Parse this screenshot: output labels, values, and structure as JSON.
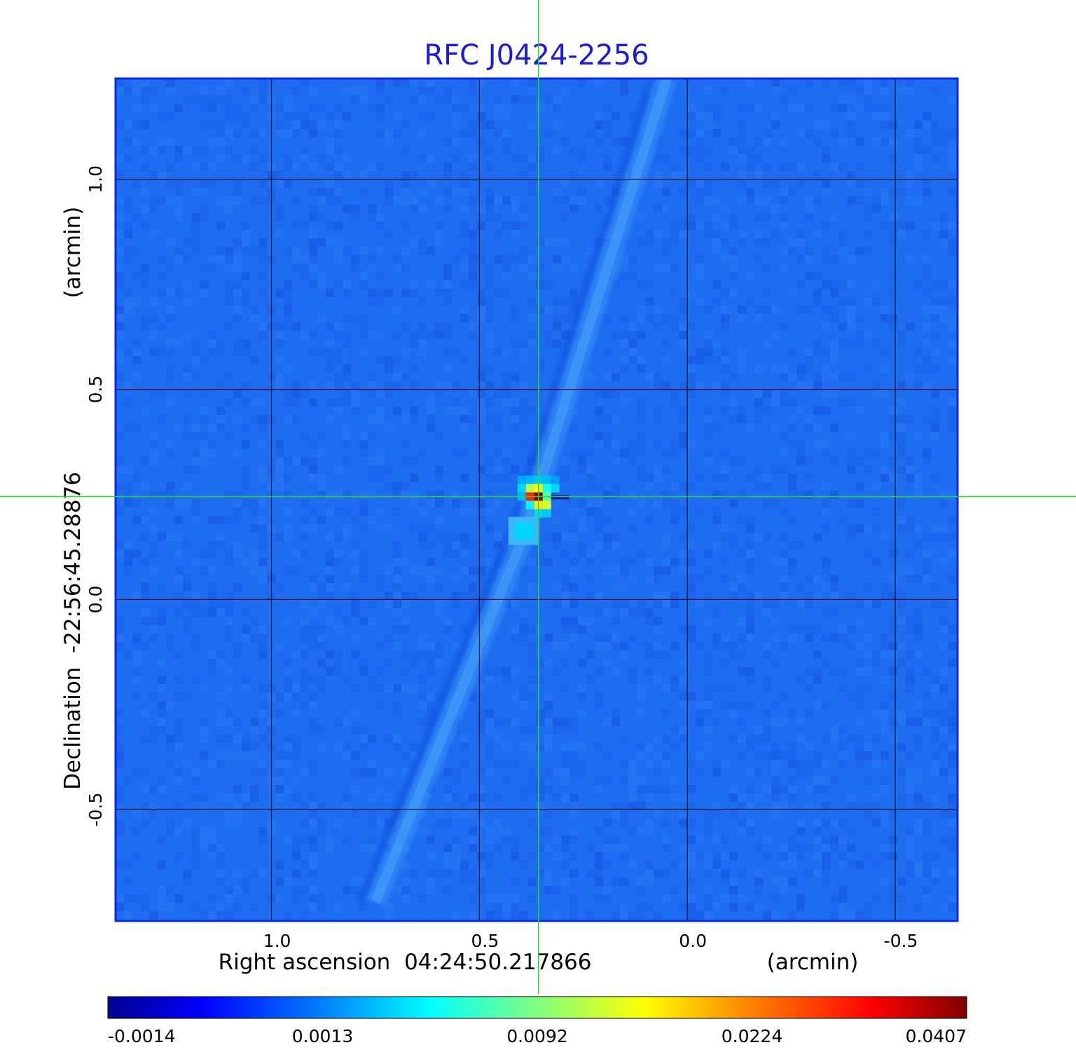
{
  "chart_data": {
    "type": "heatmap",
    "title": "RFC J0424-2256",
    "xlabel": "Right ascension  04:24:50.217866",
    "xunit": "(arcmin)",
    "ylabel": "Declination  -22:56:45.28876",
    "yunit": "(arcmin)",
    "xlim": [
      1.375,
      -0.65
    ],
    "ylim": [
      -0.765,
      1.24
    ],
    "x_ticks": [
      1.0,
      0.5,
      0.0,
      -0.5
    ],
    "x_tick_labels": [
      "1.0",
      "0.5",
      "0.0",
      "-0.5"
    ],
    "y_ticks": [
      1.0,
      0.5,
      0.0,
      -0.5
    ],
    "y_tick_labels": [
      "1.0",
      "0.5",
      "0.0",
      "-0.5"
    ],
    "grid": true,
    "crosshair": {
      "x": 0.358,
      "y": 0.245
    },
    "colormap": "jet",
    "colorbar": {
      "min": -0.0014,
      "max": 0.0407,
      "ticks": [
        -0.0014,
        0.0013,
        0.0092,
        0.0224,
        0.0407
      ],
      "tick_labels": [
        "-0.0014",
        "0.0013",
        "0.0092",
        "0.0224",
        "0.0407"
      ]
    },
    "features": {
      "core": {
        "x": 0.358,
        "y": 0.245,
        "peak": 0.0407
      },
      "component": {
        "x": 0.39,
        "y": 0.16,
        "value": 0.004
      },
      "jet_ridge": [
        [
          0.75,
          -0.72
        ],
        [
          0.39,
          0.16
        ],
        [
          0.3,
          0.45
        ],
        [
          0.05,
          1.24
        ]
      ],
      "background": 0.0
    }
  }
}
